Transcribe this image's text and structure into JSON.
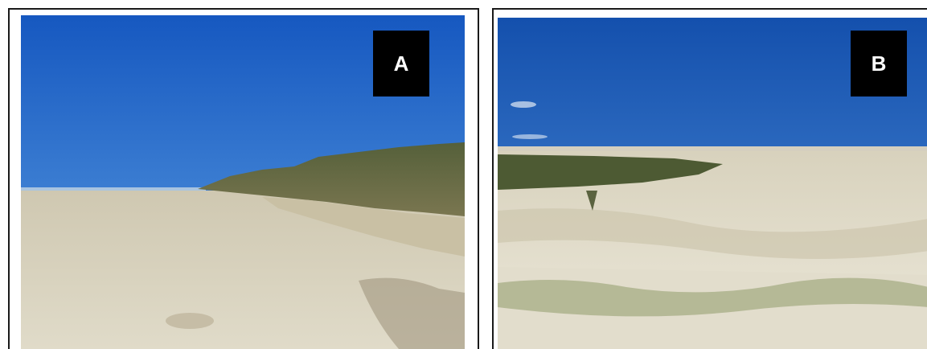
{
  "panels": [
    {
      "label": "A",
      "scene": "beach-foredune-photo"
    },
    {
      "label": "B",
      "scene": "vegetated-dune-field-photo"
    }
  ],
  "colors": {
    "sky_top": "#1a5fc4",
    "sky_bottom": "#5a9be0",
    "sand": "#d9d3bf",
    "dune_vegetation": "#4f5a34",
    "label_box": "#000000",
    "label_text": "#ffffff"
  }
}
